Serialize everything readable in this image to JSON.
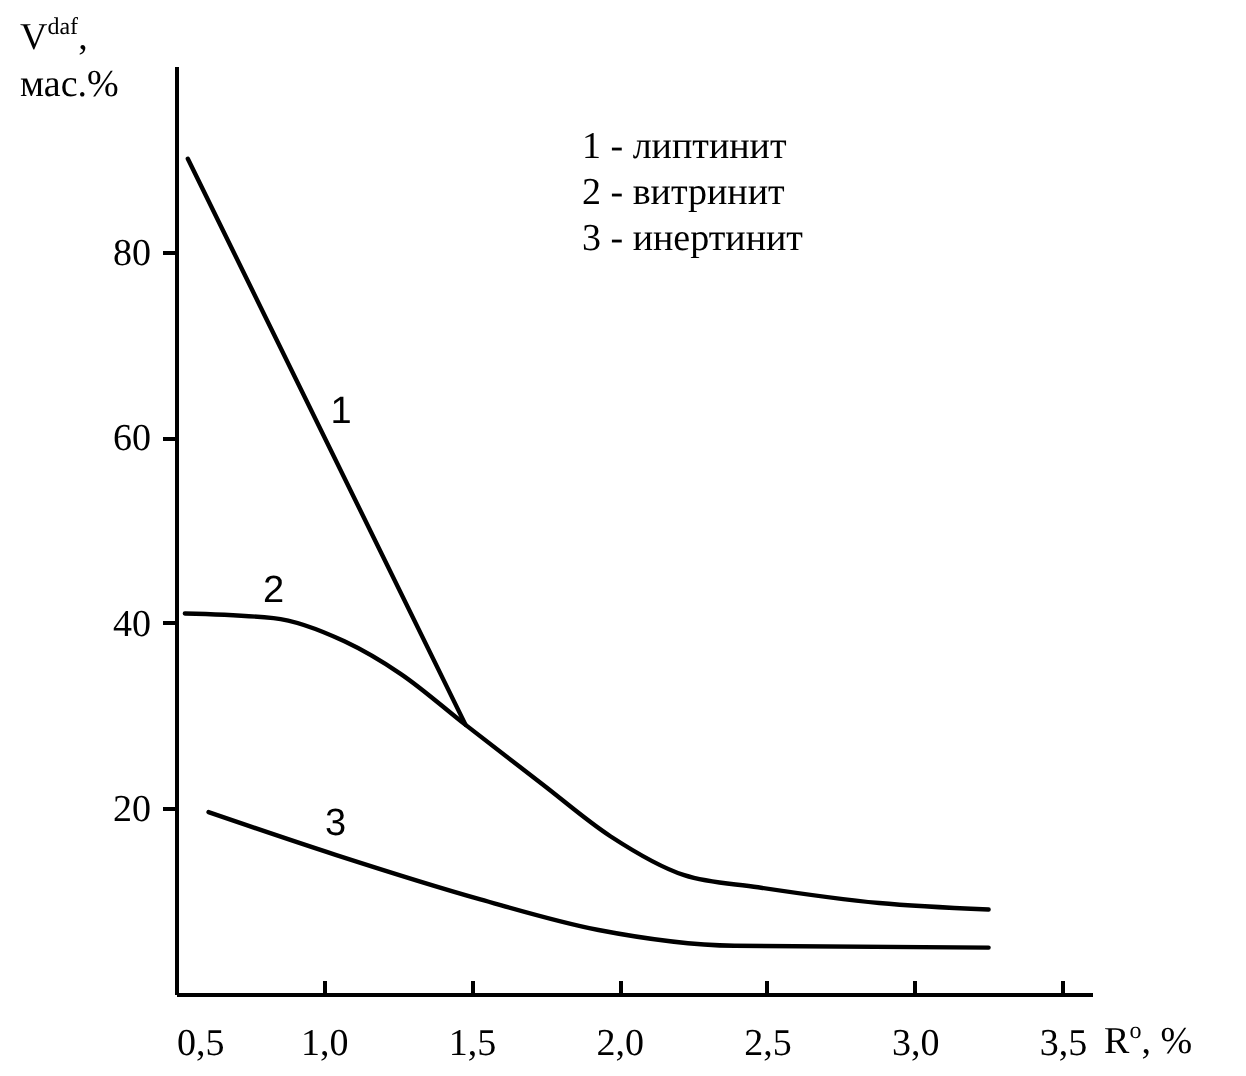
{
  "chart_data": {
    "type": "line",
    "xlabel": "R$^{o}$, %",
    "ylabel": "V$^{daf}$, мас.%",
    "xlim": [
      0.5,
      3.6
    ],
    "ylim": [
      0,
      100
    ],
    "xticks": [
      {
        "value": 0.5,
        "label": "0,5"
      },
      {
        "value": 1.0,
        "label": "1,0"
      },
      {
        "value": 1.5,
        "label": "1,5"
      },
      {
        "value": 2.0,
        "label": "2,0"
      },
      {
        "value": 2.5,
        "label": "2,5"
      },
      {
        "value": 3.0,
        "label": "3,0"
      },
      {
        "value": 3.5,
        "label": "3,5"
      }
    ],
    "yticks": [
      20,
      40,
      60,
      80
    ],
    "series": [
      {
        "name": "1",
        "color": "#000000",
        "x": [
          0.54,
          1.48
        ],
        "values": [
          90,
          29
        ]
      },
      {
        "name": "2",
        "color": "#000000",
        "x": [
          0.53,
          0.83,
          1.07,
          1.26,
          1.48,
          1.74,
          1.97,
          2.22,
          2.47,
          2.88,
          3.25
        ],
        "values": [
          41,
          40.5,
          38,
          34.5,
          29,
          22.6,
          17,
          12.8,
          11.5,
          9.8,
          9.1
        ]
      },
      {
        "name": "3",
        "color": "#000000",
        "x": [
          0.61,
          1.04,
          1.53,
          1.93,
          2.39,
          3.25
        ],
        "values": [
          19.6,
          15,
          10.2,
          6.9,
          5.2,
          5.0
        ]
      }
    ],
    "annotations": [
      "1 - липтинит",
      "2 - витринит",
      "3 - инертинит"
    ]
  }
}
